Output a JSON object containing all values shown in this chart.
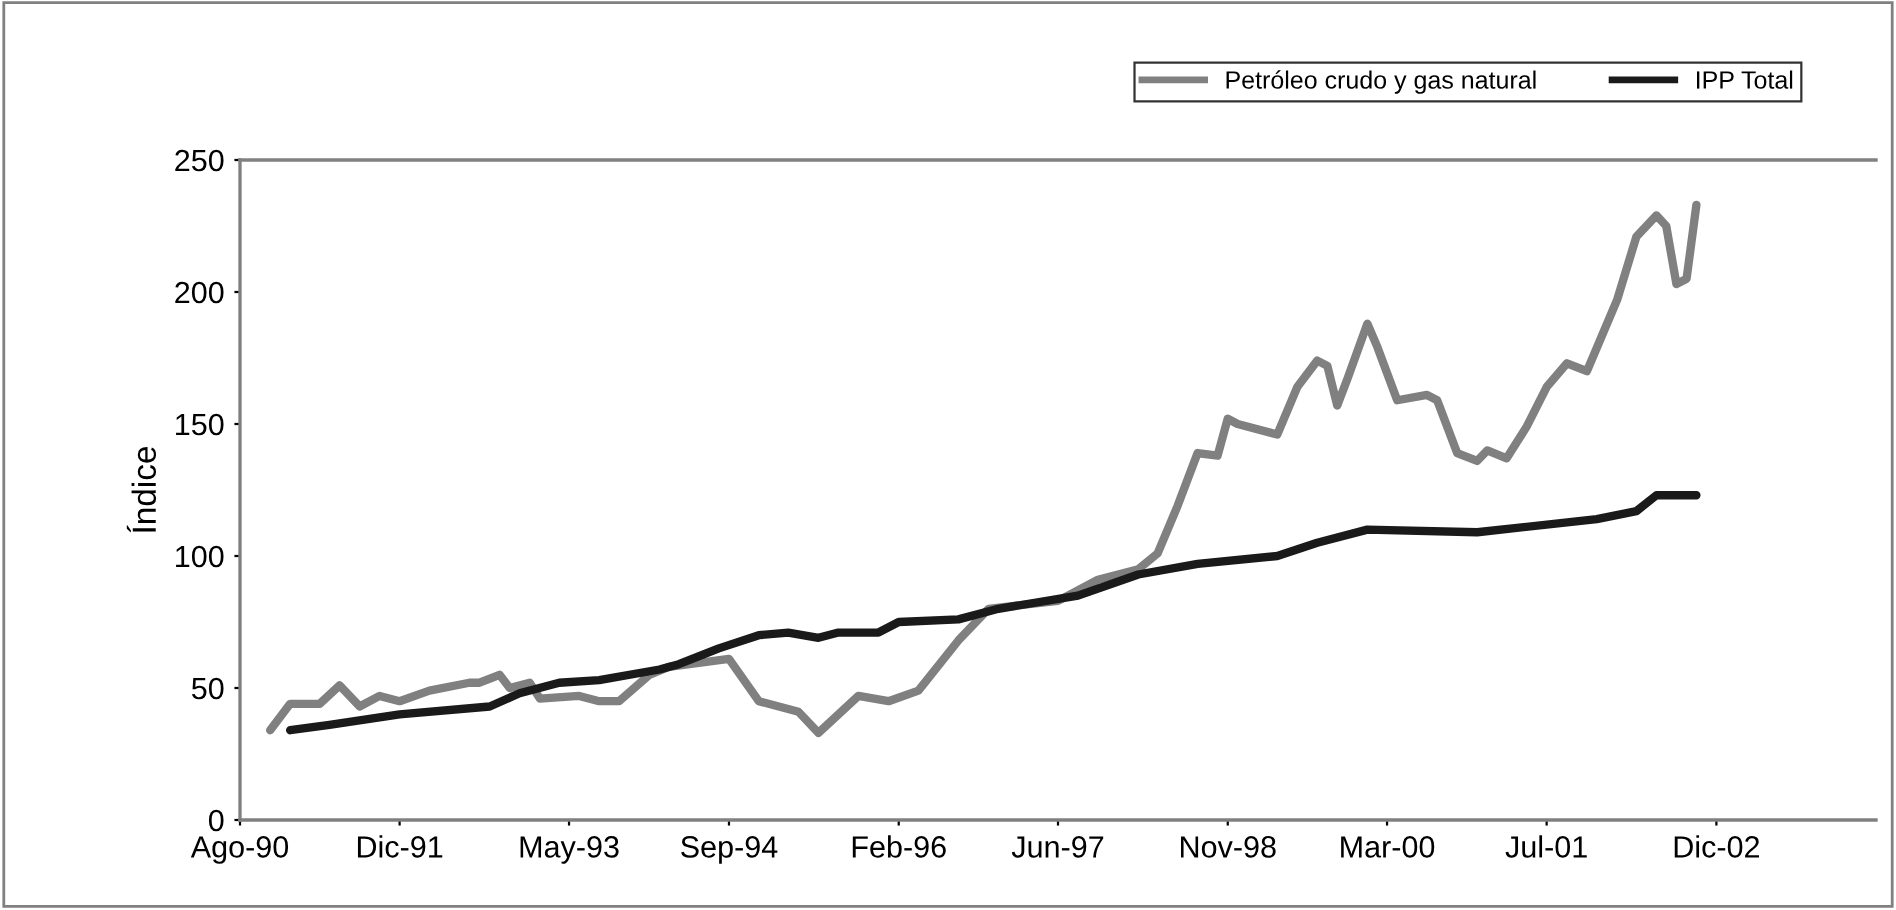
{
  "chart_data": {
    "type": "line",
    "ylabel": "Índice",
    "legend": "top right",
    "grid": false,
    "line_style": "solid",
    "marker": "none",
    "xlim": [
      "1990-08",
      "2004-04"
    ],
    "ylim": [
      0,
      250
    ],
    "yticks": [
      0,
      50,
      100,
      150,
      200,
      250
    ],
    "xticks": [
      {
        "value": "1990-08",
        "label": "Ago-90"
      },
      {
        "value": "1991-12",
        "label": "Dic-91"
      },
      {
        "value": "1993-05",
        "label": "May-93"
      },
      {
        "value": "1994-09",
        "label": "Sep-94"
      },
      {
        "value": "1996-02",
        "label": "Feb-96"
      },
      {
        "value": "1997-06",
        "label": "Jun-97"
      },
      {
        "value": "1998-11",
        "label": "Nov-98"
      },
      {
        "value": "2000-03",
        "label": "Mar-00"
      },
      {
        "value": "2001-07",
        "label": "Jul-01"
      },
      {
        "value": "2002-12",
        "label": "Dic-02"
      }
    ],
    "series": [
      {
        "name": "Petróleo crudo y gas natural",
        "color": "#808080",
        "x": [
          "1990-11",
          "1991-01",
          "1991-04",
          "1991-06",
          "1991-08",
          "1991-10",
          "1991-12",
          "1992-03",
          "1992-07",
          "1992-08",
          "1992-10",
          "1992-11",
          "1993-01",
          "1993-02",
          "1993-06",
          "1993-08",
          "1993-10",
          "1994-01",
          "1994-03",
          "1994-09",
          "1994-12",
          "1995-04",
          "1995-06",
          "1995-10",
          "1996-01",
          "1996-04",
          "1996-08",
          "1996-11",
          "1997-06",
          "1997-10",
          "1998-02",
          "1998-04",
          "1998-06",
          "1998-08",
          "1998-10",
          "1998-11",
          "1998-12",
          "1999-04",
          "1999-06",
          "1999-08",
          "1999-09",
          "1999-10",
          "1999-11",
          "2000-01",
          "2000-02",
          "2000-04",
          "2000-07",
          "2000-08",
          "2000-10",
          "2000-12",
          "2001-01",
          "2001-03",
          "2001-05",
          "2001-07",
          "2001-09",
          "2001-11",
          "2002-02",
          "2002-04",
          "2002-06",
          "2002-07",
          "2002-08",
          "2002-09",
          "2002-10"
        ],
        "values": [
          34,
          44,
          44,
          51,
          43,
          47,
          45,
          49,
          52,
          52,
          55,
          50,
          52,
          46,
          47,
          45,
          45,
          55,
          58,
          61,
          45,
          41,
          33,
          47,
          45,
          49,
          68,
          80,
          83,
          91,
          95,
          101,
          119,
          139,
          138,
          152,
          150,
          146,
          164,
          174,
          172,
          157,
          167,
          188,
          179,
          159,
          161,
          159,
          139,
          136,
          140,
          137,
          149,
          164,
          173,
          170,
          197,
          221,
          229,
          225,
          203,
          205,
          233
        ]
      },
      {
        "name": "IPP Total",
        "color": "#1a1a1a",
        "x": [
          "1991-01",
          "1991-05",
          "1991-12",
          "1992-09",
          "1992-12",
          "1993-04",
          "1993-08",
          "1994-02",
          "1994-04",
          "1994-08",
          "1994-12",
          "1995-03",
          "1995-06",
          "1995-08",
          "1995-12",
          "1996-02",
          "1996-08",
          "1996-12",
          "1997-08",
          "1998-02",
          "1998-08",
          "1999-04",
          "1999-08",
          "2000-01",
          "2000-12",
          "2001-12",
          "2002-04",
          "2002-06",
          "2002-10"
        ],
        "values": [
          34,
          36,
          40,
          43,
          48,
          52,
          53,
          57,
          59,
          65,
          70,
          71,
          69,
          71,
          71,
          75,
          76,
          80,
          85,
          93,
          97,
          100,
          105,
          110,
          109,
          114,
          117,
          123,
          123
        ]
      }
    ]
  }
}
